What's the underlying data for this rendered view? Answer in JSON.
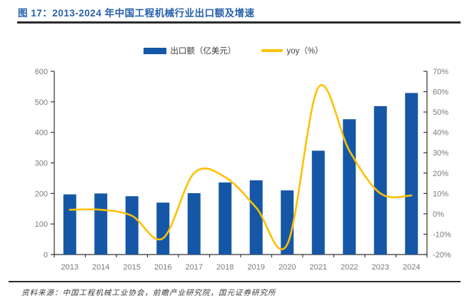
{
  "figure": {
    "title": "图 17：2013-2024 年中国工程机械行业出口额及增速",
    "source": "资料来源：中国工程机械工业协会，前瞻产业研究院，国元证券研究所"
  },
  "legend": {
    "bar_label": "出口额（亿美元）",
    "line_label": "yoy（%）"
  },
  "colors": {
    "bar": "#1557A6",
    "line": "#FFC000",
    "title": "#2660AC",
    "axis": "#333333",
    "tick_text": "#7a7a7a"
  },
  "chart_data": {
    "type": "bar",
    "subtype": "bar+line combo",
    "title": "2013-2024 年中国工程机械行业出口额及增速",
    "categories": [
      "2013",
      "2014",
      "2015",
      "2016",
      "2017",
      "2018",
      "2019",
      "2020",
      "2021",
      "2022",
      "2023",
      "2024"
    ],
    "series": [
      {
        "name": "出口额（亿美元）",
        "type": "bar",
        "axis": "left",
        "color": "#1557A6",
        "values": [
          197,
          200,
          191,
          170,
          201,
          236,
          243,
          210,
          340,
          443,
          486,
          529
        ]
      },
      {
        "name": "yoy（%）",
        "type": "line",
        "axis": "right",
        "color": "#FFC000",
        "values": [
          2,
          2,
          -1,
          -12,
          20,
          18,
          3,
          -15,
          62,
          31,
          10,
          9
        ]
      }
    ],
    "left_axis": {
      "min": 0,
      "max": 600,
      "step": 100,
      "tick_labels": [
        "0",
        "100",
        "200",
        "300",
        "400",
        "500",
        "600"
      ]
    },
    "right_axis": {
      "min": -20,
      "max": 70,
      "step": 10,
      "tick_labels": [
        "-20%",
        "-10%",
        "0%",
        "10%",
        "20%",
        "30%",
        "40%",
        "50%",
        "60%",
        "70%"
      ]
    },
    "grid": false,
    "legend_position": "top",
    "line_smooth": true
  }
}
